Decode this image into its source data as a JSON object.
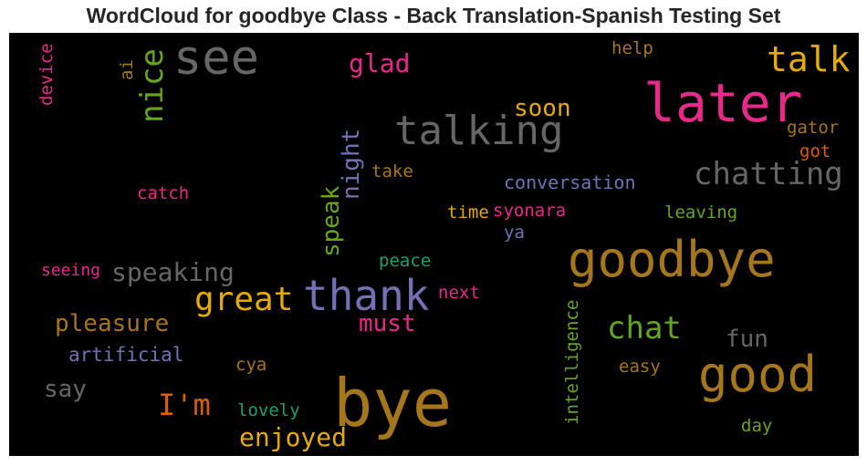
{
  "chart_data": {
    "type": "wordcloud",
    "title": "WordCloud for goodbye Class - Back Translation-Spanish Testing Set",
    "words": [
      {
        "id": "bye",
        "text": "bye",
        "color": "#a6761d"
      },
      {
        "id": "goodbye",
        "text": "goodbye",
        "color": "#a6761d"
      },
      {
        "id": "later",
        "text": "later",
        "color": "#e7298a"
      },
      {
        "id": "good",
        "text": "good",
        "color": "#a6761d"
      },
      {
        "id": "thank",
        "text": "thank",
        "color": "#7570b3"
      },
      {
        "id": "see",
        "text": "see",
        "color": "#666666"
      },
      {
        "id": "talking",
        "text": "talking",
        "color": "#666666"
      },
      {
        "id": "talk",
        "text": "talk",
        "color": "#e6ab02"
      },
      {
        "id": "chatting",
        "text": "chatting",
        "color": "#666666"
      },
      {
        "id": "great",
        "text": "great",
        "color": "#e6ab02"
      },
      {
        "id": "chat",
        "text": "chat",
        "color": "#66a61e"
      },
      {
        "id": "nice",
        "text": "nice",
        "color": "#66a61e"
      },
      {
        "id": "im",
        "text": "I'm",
        "color": "#d95f02"
      },
      {
        "id": "enjoyed",
        "text": "enjoyed",
        "color": "#e6ab02"
      },
      {
        "id": "glad",
        "text": "glad",
        "color": "#e7298a"
      },
      {
        "id": "speaking",
        "text": "speaking",
        "color": "#666666"
      },
      {
        "id": "pleasure",
        "text": "pleasure",
        "color": "#a6761d"
      },
      {
        "id": "night",
        "text": "night",
        "color": "#7570b3"
      },
      {
        "id": "speak",
        "text": "speak",
        "color": "#66a61e"
      },
      {
        "id": "soon",
        "text": "soon",
        "color": "#e6ab02"
      },
      {
        "id": "must",
        "text": "must",
        "color": "#e7298a"
      },
      {
        "id": "fun",
        "text": "fun",
        "color": "#666666"
      },
      {
        "id": "say",
        "text": "say",
        "color": "#666666"
      },
      {
        "id": "artificial",
        "text": "artificial",
        "color": "#7570b3"
      },
      {
        "id": "conversation",
        "text": "conversation",
        "color": "#7570b3"
      },
      {
        "id": "intelligence",
        "text": "intelligence",
        "color": "#66a61e"
      },
      {
        "id": "catch",
        "text": "catch",
        "color": "#e7298a"
      },
      {
        "id": "take",
        "text": "take",
        "color": "#a6761d"
      },
      {
        "id": "time",
        "text": "time",
        "color": "#e6ab02"
      },
      {
        "id": "syonara",
        "text": "syonara",
        "color": "#e7298a"
      },
      {
        "id": "leaving",
        "text": "leaving",
        "color": "#66a61e"
      },
      {
        "id": "ya",
        "text": "ya",
        "color": "#7570b3"
      },
      {
        "id": "peace",
        "text": "peace",
        "color": "#1b9e77"
      },
      {
        "id": "next",
        "text": "next",
        "color": "#e7298a"
      },
      {
        "id": "seeing",
        "text": "seeing",
        "color": "#e7298a"
      },
      {
        "id": "cya",
        "text": "cya",
        "color": "#a6761d"
      },
      {
        "id": "lovely",
        "text": "lovely",
        "color": "#1b9e77"
      },
      {
        "id": "easy",
        "text": "easy",
        "color": "#a6761d"
      },
      {
        "id": "day",
        "text": "day",
        "color": "#66a61e"
      },
      {
        "id": "help",
        "text": "help",
        "color": "#a6761d"
      },
      {
        "id": "gator",
        "text": "gator",
        "color": "#a6761d"
      },
      {
        "id": "got",
        "text": "got",
        "color": "#d95f02"
      },
      {
        "id": "device",
        "text": "device",
        "color": "#e7298a"
      },
      {
        "id": "ai",
        "text": "ai",
        "color": "#a6761d"
      }
    ]
  }
}
